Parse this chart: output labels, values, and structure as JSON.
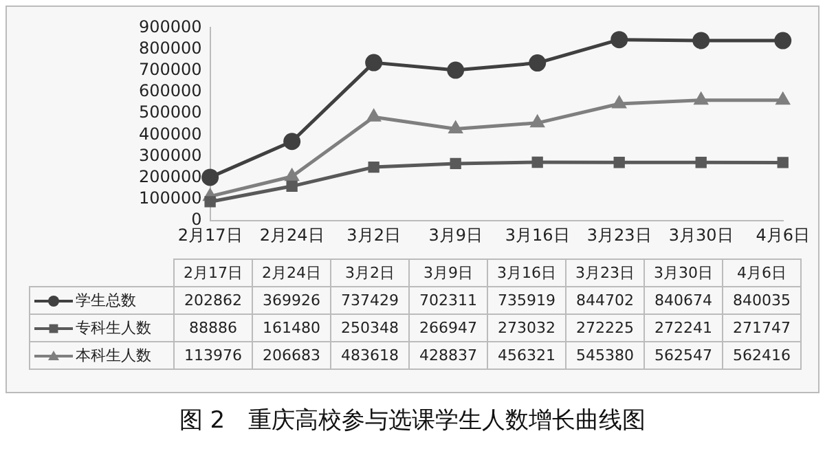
{
  "chart_data": {
    "type": "line",
    "title": "图 2　重庆高校参与选课学生人数增长曲线图",
    "categories": [
      "2月17日",
      "2月24日",
      "3月2日",
      "3月9日",
      "3月16日",
      "3月23日",
      "3月30日",
      "4月6日"
    ],
    "series": [
      {
        "name": "学生总数",
        "color": "#404040",
        "marker": "circle",
        "values": [
          202862,
          369926,
          737429,
          702311,
          735919,
          844702,
          840674,
          840035
        ]
      },
      {
        "name": "专科生人数",
        "color": "#595959",
        "marker": "square",
        "values": [
          88886,
          161480,
          250348,
          266947,
          273032,
          272225,
          272241,
          271747
        ]
      },
      {
        "name": "本科生人数",
        "color": "#7f7f7f",
        "marker": "triangle",
        "values": [
          113976,
          206683,
          483618,
          428837,
          456321,
          545380,
          562547,
          562416
        ]
      }
    ],
    "ylim": [
      0,
      900000
    ],
    "yticks": [
      0,
      100000,
      200000,
      300000,
      400000,
      500000,
      600000,
      700000,
      800000,
      900000
    ],
    "grid": false,
    "legend": "bottom",
    "data_labels": true,
    "line_style": "solid"
  }
}
